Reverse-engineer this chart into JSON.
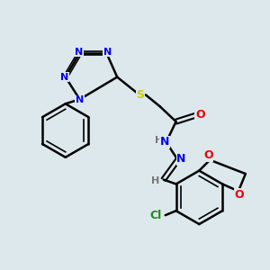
{
  "bg_color": "#dce8ec",
  "atom_colors": {
    "N": "#0000ee",
    "O": "#ee0000",
    "S": "#cccc00",
    "Cl": "#228822",
    "C": "#000000",
    "H": "#777777"
  },
  "bond_color": "#000000",
  "figsize": [
    3.0,
    3.0
  ],
  "dpi": 100
}
